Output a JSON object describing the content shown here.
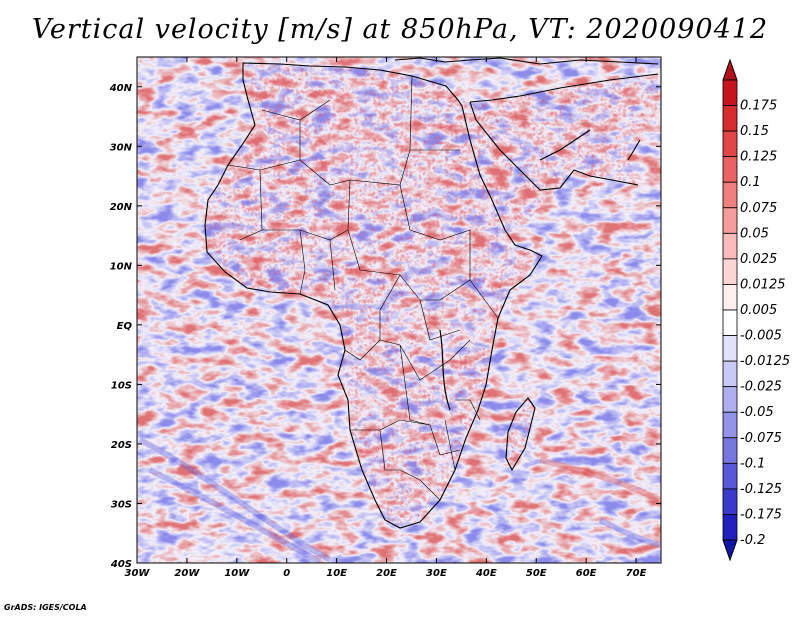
{
  "title": "Vertical velocity [m/s] at 850hPa, VT: 2020090412",
  "credit": "GrADS: IGES/COLA",
  "map": {
    "lon_range": [
      -30,
      75
    ],
    "lat_range": [
      -40,
      45
    ],
    "x_ticks": [
      {
        "value": -30,
        "label": "30W"
      },
      {
        "value": -20,
        "label": "20W"
      },
      {
        "value": -10,
        "label": "10W"
      },
      {
        "value": 0,
        "label": "0"
      },
      {
        "value": 10,
        "label": "10E"
      },
      {
        "value": 20,
        "label": "20E"
      },
      {
        "value": 30,
        "label": "30E"
      },
      {
        "value": 40,
        "label": "40E"
      },
      {
        "value": 50,
        "label": "50E"
      },
      {
        "value": 60,
        "label": "60E"
      },
      {
        "value": 70,
        "label": "70E"
      }
    ],
    "y_ticks": [
      {
        "value": 40,
        "label": "40N"
      },
      {
        "value": 30,
        "label": "30N"
      },
      {
        "value": 20,
        "label": "20N"
      },
      {
        "value": 10,
        "label": "10N"
      },
      {
        "value": 0,
        "label": "EQ"
      },
      {
        "value": -10,
        "label": "10S"
      },
      {
        "value": -20,
        "label": "20S"
      },
      {
        "value": -30,
        "label": "30S"
      },
      {
        "value": -40,
        "label": "40S"
      }
    ]
  },
  "colorbar": {
    "levels": [
      {
        "label": "0.175",
        "color": "#c8141e"
      },
      {
        "label": "0.15",
        "color": "#d72c2c"
      },
      {
        "label": "0.125",
        "color": "#e24646"
      },
      {
        "label": "0.1",
        "color": "#ea6262"
      },
      {
        "label": "0.075",
        "color": "#f07f7f"
      },
      {
        "label": "0.05",
        "color": "#f59c9c"
      },
      {
        "label": "0.025",
        "color": "#f9baba"
      },
      {
        "label": "0.0125",
        "color": "#fcd6d6"
      },
      {
        "label": "0.005",
        "color": "#feeeee"
      },
      {
        "label": "-0.005",
        "color": "#ffffff"
      },
      {
        "label": "-0.0125",
        "color": "#e2e2fb"
      },
      {
        "label": "-0.025",
        "color": "#c9c9f6"
      },
      {
        "label": "-0.05",
        "color": "#aeaef0"
      },
      {
        "label": "-0.075",
        "color": "#9393ea"
      },
      {
        "label": "-0.1",
        "color": "#7777e2"
      },
      {
        "label": "-0.125",
        "color": "#5858d8"
      },
      {
        "label": "-0.175",
        "color": "#3a3acd"
      },
      {
        "label": "-0.2",
        "color": "#2020be"
      }
    ],
    "top_arrow_color": "#b4101a",
    "bottom_arrow_color": "#1414a8"
  }
}
